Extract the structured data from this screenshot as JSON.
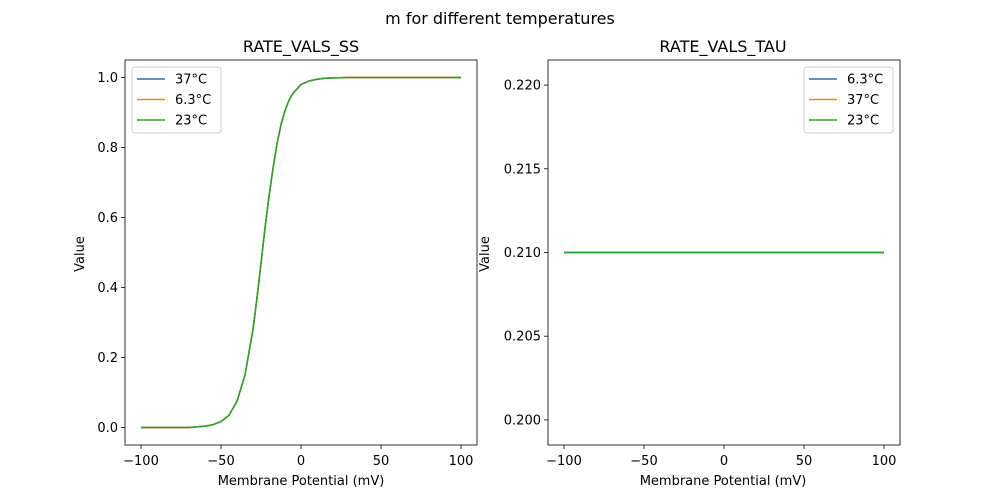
{
  "figure": {
    "suptitle": "m for different temperatures"
  },
  "chart_data": [
    {
      "type": "line",
      "title": "RATE_VALS_SS",
      "xlabel": "Membrane Potential (mV)",
      "ylabel": "Value",
      "xlim": [
        -110,
        110
      ],
      "ylim": [
        -0.05,
        1.05
      ],
      "xticks": [
        -100,
        -50,
        0,
        50,
        100
      ],
      "yticks": [
        0.0,
        0.2,
        0.4,
        0.6,
        0.8,
        1.0
      ],
      "xtick_labels": [
        "−100",
        "−50",
        "0",
        "50",
        "100"
      ],
      "ytick_labels": [
        "0.0",
        "0.2",
        "0.4",
        "0.6",
        "0.8",
        "1.0"
      ],
      "legend_position": "top-left",
      "colors": {
        "37°C": "#1f77b4",
        "6.3°C": "#ff7f0e",
        "23°C": "#2ca02c"
      },
      "x": [
        -100,
        -90,
        -80,
        -70,
        -60,
        -55,
        -50,
        -45,
        -40,
        -35,
        -30,
        -27.5,
        -25,
        -22.5,
        -20,
        -17.5,
        -15,
        -12.5,
        -10,
        -7.5,
        -5,
        0,
        5,
        10,
        15,
        20,
        30,
        40,
        50,
        60,
        80,
        100
      ],
      "series": [
        {
          "name": "37°C",
          "values": [
            0.0,
            0.0,
            0.0,
            0.0,
            0.004,
            0.008,
            0.017,
            0.035,
            0.075,
            0.15,
            0.28,
            0.37,
            0.47,
            0.57,
            0.66,
            0.74,
            0.81,
            0.865,
            0.905,
            0.935,
            0.955,
            0.98,
            0.99,
            0.995,
            0.998,
            0.999,
            1.0,
            1.0,
            1.0,
            1.0,
            1.0,
            1.0
          ]
        },
        {
          "name": "6.3°C",
          "values": [
            0.0,
            0.0,
            0.0,
            0.0,
            0.004,
            0.008,
            0.017,
            0.035,
            0.075,
            0.15,
            0.28,
            0.37,
            0.47,
            0.57,
            0.66,
            0.74,
            0.81,
            0.865,
            0.905,
            0.935,
            0.955,
            0.98,
            0.99,
            0.995,
            0.998,
            0.999,
            1.0,
            1.0,
            1.0,
            1.0,
            1.0,
            1.0
          ]
        },
        {
          "name": "23°C",
          "values": [
            0.0,
            0.0,
            0.0,
            0.0,
            0.004,
            0.008,
            0.017,
            0.035,
            0.075,
            0.15,
            0.28,
            0.37,
            0.47,
            0.57,
            0.66,
            0.74,
            0.81,
            0.865,
            0.905,
            0.935,
            0.955,
            0.98,
            0.99,
            0.995,
            0.998,
            0.999,
            1.0,
            1.0,
            1.0,
            1.0,
            1.0,
            1.0
          ]
        }
      ]
    },
    {
      "type": "line",
      "title": "RATE_VALS_TAU",
      "xlabel": "Membrane Potential (mV)",
      "ylabel": "Value",
      "xlim": [
        -110,
        110
      ],
      "ylim": [
        0.1985,
        0.2215
      ],
      "xticks": [
        -100,
        -50,
        0,
        50,
        100
      ],
      "yticks": [
        0.2,
        0.205,
        0.21,
        0.215,
        0.22
      ],
      "xtick_labels": [
        "−100",
        "−50",
        "0",
        "50",
        "100"
      ],
      "ytick_labels": [
        "0.200",
        "0.205",
        "0.210",
        "0.215",
        "0.220"
      ],
      "legend_position": "top-right",
      "colors": {
        "6.3°C": "#1f77b4",
        "37°C": "#ff7f0e",
        "23°C": "#2ca02c"
      },
      "x": [
        -100,
        100
      ],
      "series": [
        {
          "name": "6.3°C",
          "values": [
            0.21,
            0.21
          ]
        },
        {
          "name": "37°C",
          "values": [
            0.21,
            0.21
          ]
        },
        {
          "name": "23°C",
          "values": [
            0.21,
            0.21
          ]
        }
      ]
    }
  ]
}
